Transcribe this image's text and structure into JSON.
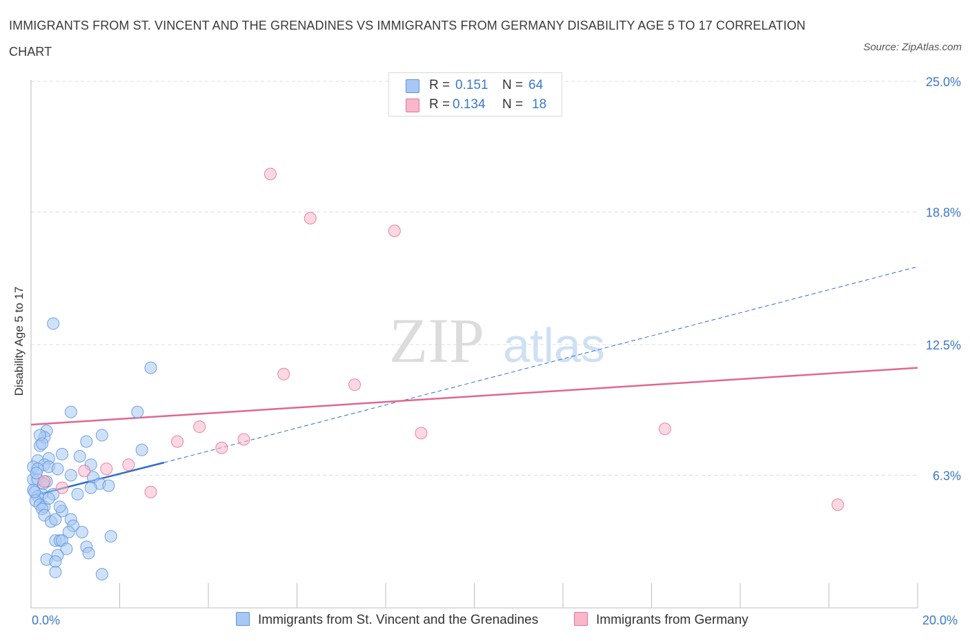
{
  "title": "IMMIGRANTS FROM ST. VINCENT AND THE GRENADINES VS IMMIGRANTS FROM GERMANY DISABILITY AGE 5 TO 17 CORRELATION CHART",
  "source": "Source: ZipAtlas.com",
  "watermark": {
    "zip": "ZIP",
    "atlas": "atlas"
  },
  "legend": {
    "r_label": "R =",
    "n_label": "N =",
    "rows": [
      {
        "r": "0.151",
        "n": "64",
        "color": "#a8c8f4"
      },
      {
        "r": "0.134",
        "n": "18",
        "color": "#f7b8cb"
      }
    ]
  },
  "colors": {
    "blue": "#5b93dd",
    "blue_fill": "#a8c8f4",
    "blue_line": "#2f6cc9",
    "pink": "#e86f98",
    "pink_fill": "#f7b8cb",
    "pink_line": "#e06690",
    "axis_text": "#3a78c9",
    "grid": "#dcdcdc"
  },
  "chart_data": {
    "type": "scatter",
    "title": "IMMIGRANTS FROM ST. VINCENT AND THE GRENADINES VS IMMIGRANTS FROM GERMANY DISABILITY AGE 5 TO 17 CORRELATION CHART",
    "xlabel": "",
    "ylabel": "Disability Age 5 to 17",
    "xlim": [
      0,
      20
    ],
    "ylim": [
      0,
      25
    ],
    "x_tick_labels": [
      "0.0%",
      "20.0%"
    ],
    "y_ticks": [
      6.3,
      12.5,
      18.8,
      25.0
    ],
    "y_tick_labels": [
      "6.3%",
      "12.5%",
      "18.8%",
      "25.0%"
    ],
    "grid": "horizontal dashed",
    "legend_position": "top-center",
    "series": [
      {
        "name": "Immigrants from St. Vincent and the Grenadines",
        "color": "#5b93dd",
        "r": 0.151,
        "n": 64,
        "trend": {
          "x": [
            0.0,
            3.0
          ],
          "y": [
            5.3,
            6.9
          ],
          "extended_x": [
            3.0,
            20.0
          ],
          "extended_y": [
            6.9,
            16.2
          ]
        },
        "points": [
          [
            0.5,
            13.5
          ],
          [
            2.7,
            11.4
          ],
          [
            0.9,
            9.3
          ],
          [
            2.4,
            9.3
          ],
          [
            0.35,
            8.4
          ],
          [
            0.3,
            8.1
          ],
          [
            0.2,
            8.2
          ],
          [
            1.25,
            7.9
          ],
          [
            1.6,
            8.2
          ],
          [
            0.2,
            7.7
          ],
          [
            0.25,
            7.8
          ],
          [
            2.5,
            7.5
          ],
          [
            0.7,
            7.3
          ],
          [
            1.1,
            7.2
          ],
          [
            0.15,
            7.0
          ],
          [
            0.4,
            7.1
          ],
          [
            0.05,
            6.7
          ],
          [
            0.3,
            6.8
          ],
          [
            0.4,
            6.7
          ],
          [
            0.15,
            6.6
          ],
          [
            0.6,
            6.6
          ],
          [
            1.35,
            6.8
          ],
          [
            0.9,
            6.3
          ],
          [
            1.4,
            6.2
          ],
          [
            0.05,
            6.1
          ],
          [
            0.15,
            6.1
          ],
          [
            0.35,
            6.0
          ],
          [
            1.55,
            5.9
          ],
          [
            1.75,
            5.8
          ],
          [
            1.35,
            5.7
          ],
          [
            0.05,
            5.6
          ],
          [
            1.05,
            5.4
          ],
          [
            0.5,
            5.4
          ],
          [
            0.25,
            5.4
          ],
          [
            0.15,
            5.3
          ],
          [
            0.1,
            5.1
          ],
          [
            0.2,
            4.9
          ],
          [
            0.3,
            4.8
          ],
          [
            0.25,
            4.7
          ],
          [
            0.7,
            4.6
          ],
          [
            0.3,
            4.4
          ],
          [
            0.9,
            4.2
          ],
          [
            0.45,
            4.1
          ],
          [
            0.55,
            4.2
          ],
          [
            0.95,
            3.9
          ],
          [
            0.85,
            3.6
          ],
          [
            1.15,
            3.6
          ],
          [
            0.55,
            3.2
          ],
          [
            0.65,
            3.2
          ],
          [
            0.7,
            3.2
          ],
          [
            1.8,
            3.4
          ],
          [
            0.8,
            2.8
          ],
          [
            1.25,
            2.9
          ],
          [
            0.6,
            2.5
          ],
          [
            1.3,
            2.6
          ],
          [
            0.35,
            2.3
          ],
          [
            0.55,
            2.2
          ],
          [
            0.55,
            1.7
          ],
          [
            1.6,
            1.6
          ],
          [
            0.08,
            5.5
          ],
          [
            0.12,
            6.4
          ],
          [
            0.28,
            5.9
          ],
          [
            0.4,
            5.2
          ],
          [
            0.65,
            4.8
          ]
        ]
      },
      {
        "name": "Immigrants from Germany",
        "color": "#e86f98",
        "r": 0.134,
        "n": 18,
        "trend": {
          "x": [
            0.0,
            20.0
          ],
          "y": [
            8.7,
            11.4
          ]
        },
        "points": [
          [
            5.4,
            20.6
          ],
          [
            6.3,
            18.5
          ],
          [
            8.2,
            17.9
          ],
          [
            5.7,
            11.1
          ],
          [
            7.3,
            10.6
          ],
          [
            3.8,
            8.6
          ],
          [
            14.3,
            8.5
          ],
          [
            8.8,
            8.3
          ],
          [
            3.3,
            7.9
          ],
          [
            4.8,
            8.0
          ],
          [
            4.3,
            7.6
          ],
          [
            2.2,
            6.8
          ],
          [
            1.7,
            6.6
          ],
          [
            1.2,
            6.5
          ],
          [
            0.3,
            6.0
          ],
          [
            0.7,
            5.7
          ],
          [
            2.7,
            5.5
          ],
          [
            18.2,
            4.9
          ]
        ]
      }
    ]
  }
}
